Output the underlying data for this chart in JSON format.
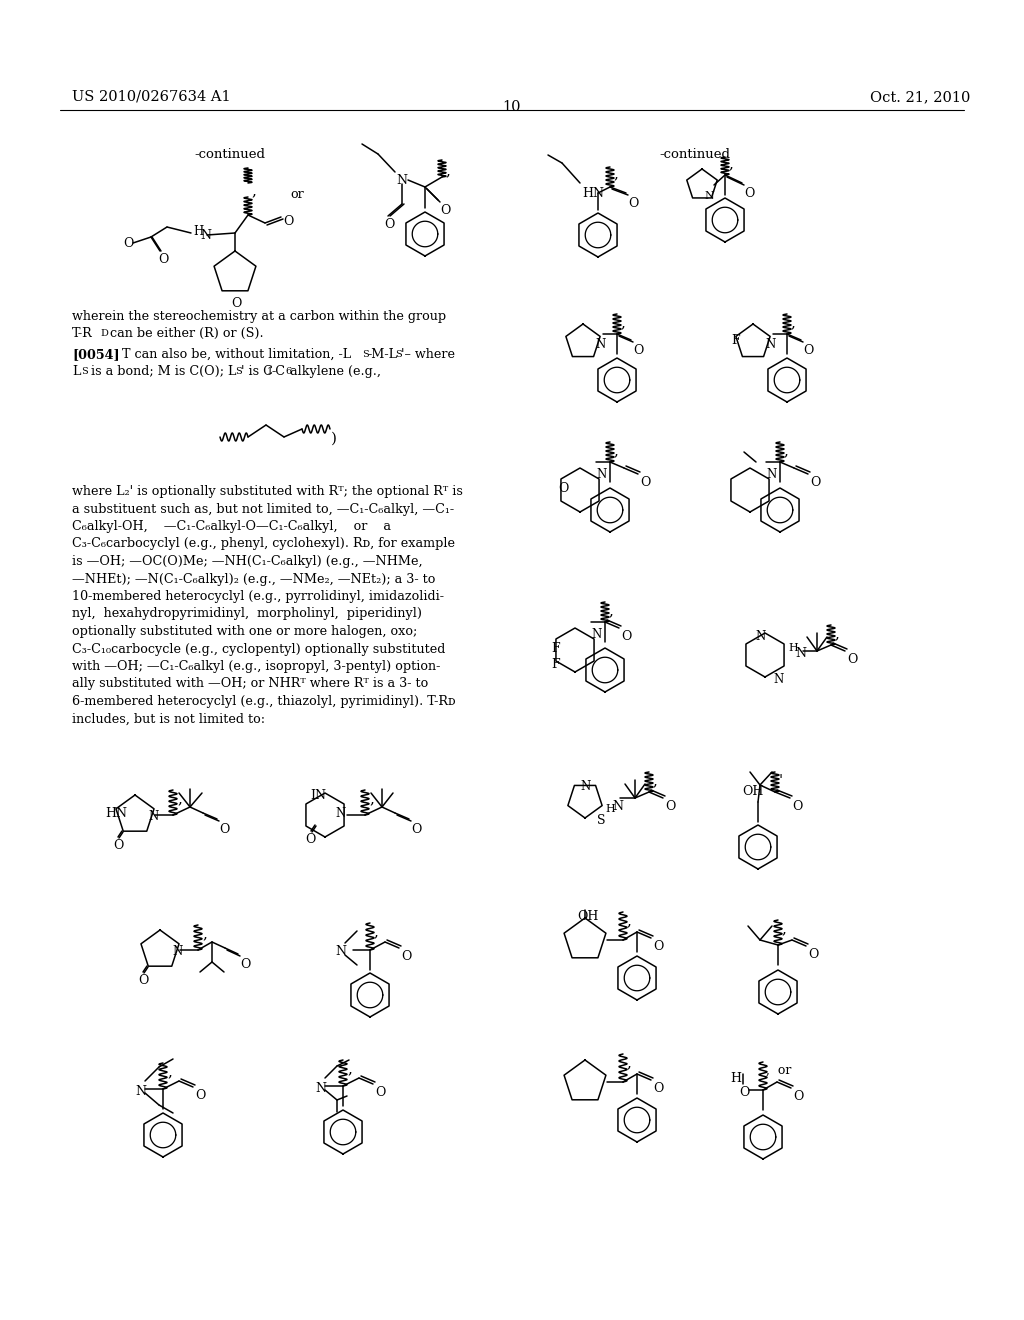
{
  "patent_number": "US 2010/0267634 A1",
  "patent_date": "Oct. 21, 2010",
  "page_number": "10",
  "bg_color": "#ffffff",
  "text_color": "#000000",
  "body_font_size": 9.2,
  "header_font_size": 10.5
}
